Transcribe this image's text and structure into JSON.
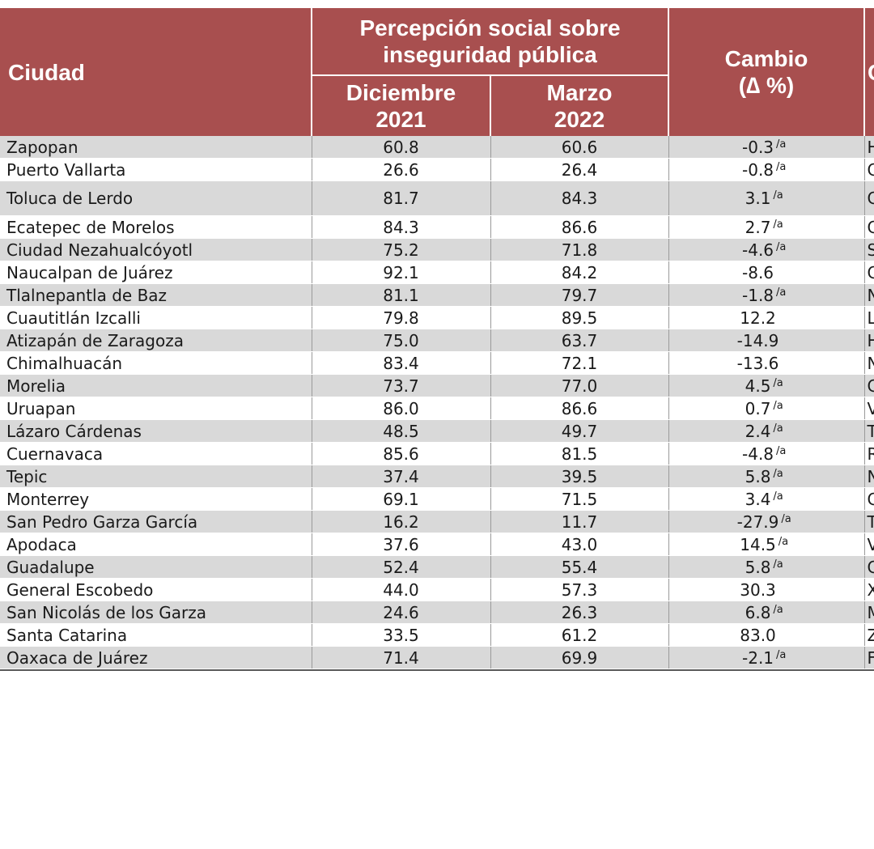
{
  "header": {
    "city": "Ciudad",
    "group_title_line1": "Percepción social sobre",
    "group_title_line2": "inseguridad pública",
    "dec_line1": "Diciembre",
    "dec_line2": "2021",
    "mar_line1": "Marzo",
    "mar_line2": "2022",
    "change_line1": "Cambio",
    "change_line2": "(∆ %)",
    "cut_col": "C"
  },
  "rows": [
    {
      "city": "Zapopan",
      "dec": "60.8",
      "mar": "60.6",
      "change": "-0.3",
      "note": "/a",
      "cut": "H"
    },
    {
      "city": "Puerto Vallarta",
      "dec": "26.6",
      "mar": "26.4",
      "change": "-0.8",
      "note": "/a",
      "cut": "C"
    },
    {
      "city": "Toluca de Lerdo",
      "dec": "81.7",
      "mar": "84.3",
      "change": "3.1",
      "note": "/a",
      "cut": "C"
    },
    {
      "city": "Ecatepec de Morelos",
      "dec": "84.3",
      "mar": "86.6",
      "change": "2.7",
      "note": "/a",
      "cut": "C"
    },
    {
      "city": "Ciudad Nezahualcóyotl",
      "dec": "75.2",
      "mar": "71.8",
      "change": "-4.6",
      "note": "/a",
      "cut": "S"
    },
    {
      "city": "Naucalpan de Juárez",
      "dec": "92.1",
      "mar": "84.2",
      "change": "-8.6",
      "note": "",
      "cut": "C"
    },
    {
      "city": "Tlalnepantla de Baz",
      "dec": "81.1",
      "mar": "79.7",
      "change": "-1.8",
      "note": "/a",
      "cut": "N"
    },
    {
      "city": "Cuautitlán Izcalli",
      "dec": "79.8",
      "mar": "89.5",
      "change": "12.2",
      "note": "",
      "cut": "L"
    },
    {
      "city": "Atizapán de Zaragoza",
      "dec": "75.0",
      "mar": "63.7",
      "change": "-14.9",
      "note": "",
      "cut": "H"
    },
    {
      "city": "Chimalhuacán",
      "dec": "83.4",
      "mar": "72.1",
      "change": "-13.6",
      "note": "",
      "cut": "N"
    },
    {
      "city": "Morelia",
      "dec": "73.7",
      "mar": "77.0",
      "change": "4.5",
      "note": "/a",
      "cut": "C"
    },
    {
      "city": "Uruapan",
      "dec": "86.0",
      "mar": "86.6",
      "change": "0.7",
      "note": "/a",
      "cut": "V"
    },
    {
      "city": "Lázaro Cárdenas",
      "dec": "48.5",
      "mar": "49.7",
      "change": "2.4",
      "note": "/a",
      "cut": "T"
    },
    {
      "city": "Cuernavaca",
      "dec": "85.6",
      "mar": "81.5",
      "change": "-4.8",
      "note": "/a",
      "cut": "R"
    },
    {
      "city": "Tepic",
      "dec": "37.4",
      "mar": "39.5",
      "change": "5.8",
      "note": "/a",
      "cut": "N"
    },
    {
      "city": "Monterrey",
      "dec": "69.1",
      "mar": "71.5",
      "change": "3.4",
      "note": "/a",
      "cut": "C"
    },
    {
      "city": "San Pedro Garza García",
      "dec": "16.2",
      "mar": "11.7",
      "change": "-27.9",
      "note": "/a",
      "cut": "T"
    },
    {
      "city": "Apodaca",
      "dec": "37.6",
      "mar": "43.0",
      "change": "14.5",
      "note": "/a",
      "cut": "V"
    },
    {
      "city": "Guadalupe",
      "dec": "52.4",
      "mar": "55.4",
      "change": "5.8",
      "note": "/a",
      "cut": "C"
    },
    {
      "city": "General Escobedo",
      "dec": "44.0",
      "mar": "57.3",
      "change": "30.3",
      "note": "",
      "cut": "X"
    },
    {
      "city": "San Nicolás de los Garza",
      "dec": "24.6",
      "mar": "26.3",
      "change": "6.8",
      "note": "/a",
      "cut": "M"
    },
    {
      "city": "Santa Catarina",
      "dec": "33.5",
      "mar": "61.2",
      "change": "83.0",
      "note": "",
      "cut": "Z"
    },
    {
      "city": "Oaxaca de Juárez",
      "dec": "71.4",
      "mar": "69.9",
      "change": "-2.1",
      "note": "/a",
      "cut": "F"
    }
  ],
  "colors": {
    "header_bg": "#a84f4f",
    "header_text": "#ffffff",
    "shade_row": "#d9d9d9",
    "text": "#1a1a1a"
  }
}
